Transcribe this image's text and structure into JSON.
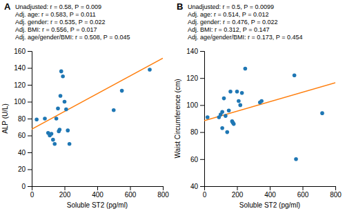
{
  "chart_data": [
    {
      "type": "scatter",
      "title": "A",
      "x": [
        30,
        80,
        100,
        110,
        120,
        130,
        140,
        150,
        160,
        165,
        170,
        175,
        180,
        190,
        200,
        210,
        220,
        230,
        500,
        550,
        720
      ],
      "values": [
        79,
        80,
        63,
        60,
        62,
        55,
        50,
        80,
        92,
        65,
        67,
        107,
        136,
        130,
        100,
        91,
        66,
        50,
        90,
        113,
        138
      ],
      "xlabel": "Soluble ST2 (pg/ml)",
      "ylabel": "ALP (U/L)",
      "xlim": [
        0,
        800
      ],
      "ylim": [
        0,
        160
      ],
      "xticks": [
        0,
        200,
        400,
        600,
        800
      ],
      "yticks": [
        0,
        20,
        40,
        60,
        80,
        100,
        120,
        140,
        160
      ],
      "annotations": [
        "Unadjusted: r = 0.58, P = 0.009",
        "Adj. age: r = 0.583, P = 0.011",
        "Adj. gender: r = 0.535, P = 0.022",
        "Adj. BMI: r = 0.556, P = 0.017",
        "Adj. age/gender/BMI: r = 0.508, P = 0.045"
      ],
      "regression": {
        "slope": 0.105,
        "intercept": 67.5
      }
    },
    {
      "type": "scatter",
      "title": "B",
      "x": [
        20,
        90,
        100,
        110,
        110,
        120,
        130,
        140,
        150,
        160,
        170,
        175,
        180,
        200,
        210,
        220,
        230,
        250,
        340,
        350,
        550,
        560,
        720
      ],
      "values": [
        91,
        91,
        93,
        95,
        83,
        105,
        92,
        80,
        96,
        110,
        88,
        87,
        86,
        110,
        103,
        100,
        109,
        127,
        102,
        103,
        122,
        60,
        94
      ],
      "xlabel": "Soluble ST2 (pg/ml)",
      "ylabel": "Waist Circumference (cm)",
      "xlim": [
        0,
        800
      ],
      "ylim": [
        40,
        140
      ],
      "xticks": [
        0,
        200,
        400,
        600,
        800
      ],
      "yticks": [
        40,
        60,
        80,
        100,
        120,
        140
      ],
      "annotations": [
        "Unadjusted: r = 0.5, P = 0.0099",
        "Adj. age: r = 0.514, P = 0.012",
        "Adj. gender: r = 0.476, P = 0.022",
        "Adj. BMI: r = 0.312, P = 0.147",
        "Adj. age/gender/BMI: r = 0.173, P = 0.454"
      ],
      "regression": {
        "slope": 0.035,
        "intercept": 88.5
      }
    }
  ]
}
